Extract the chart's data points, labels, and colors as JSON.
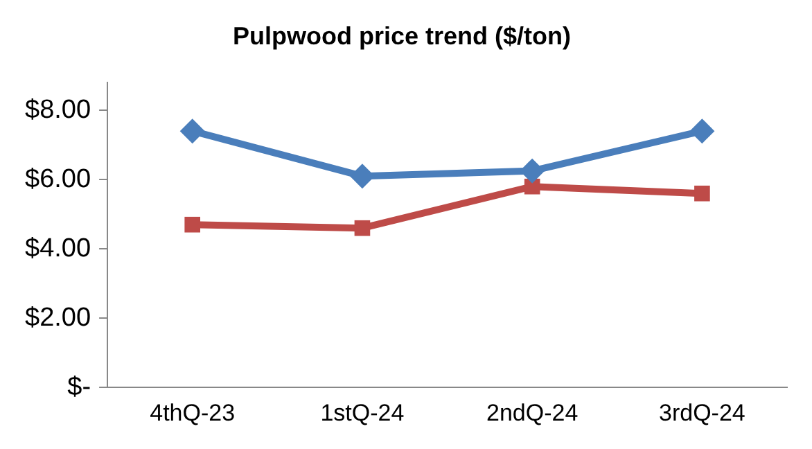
{
  "chart_data": {
    "type": "line",
    "title": "Pulpwood price trend ($/ton)",
    "categories": [
      "4thQ-23",
      "1stQ-24",
      "2ndQ-24",
      "3rdQ-24"
    ],
    "series": [
      {
        "color": "#4a7ebb",
        "values": [
          7.4,
          6.1,
          6.25,
          7.4
        ],
        "marker": "diamond"
      },
      {
        "color": "#be4b48",
        "values": [
          4.7,
          4.6,
          5.8,
          5.6
        ],
        "marker": "square"
      }
    ],
    "ylim": [
      0,
      8.8
    ],
    "yticks": [
      {
        "value": 0,
        "label": "$-"
      },
      {
        "value": 2,
        "label": "$2.00"
      },
      {
        "value": 4,
        "label": "$4.00"
      },
      {
        "value": 6,
        "label": "$6.00"
      },
      {
        "value": 8,
        "label": "$8.00"
      }
    ],
    "grid": false,
    "legend": false
  }
}
